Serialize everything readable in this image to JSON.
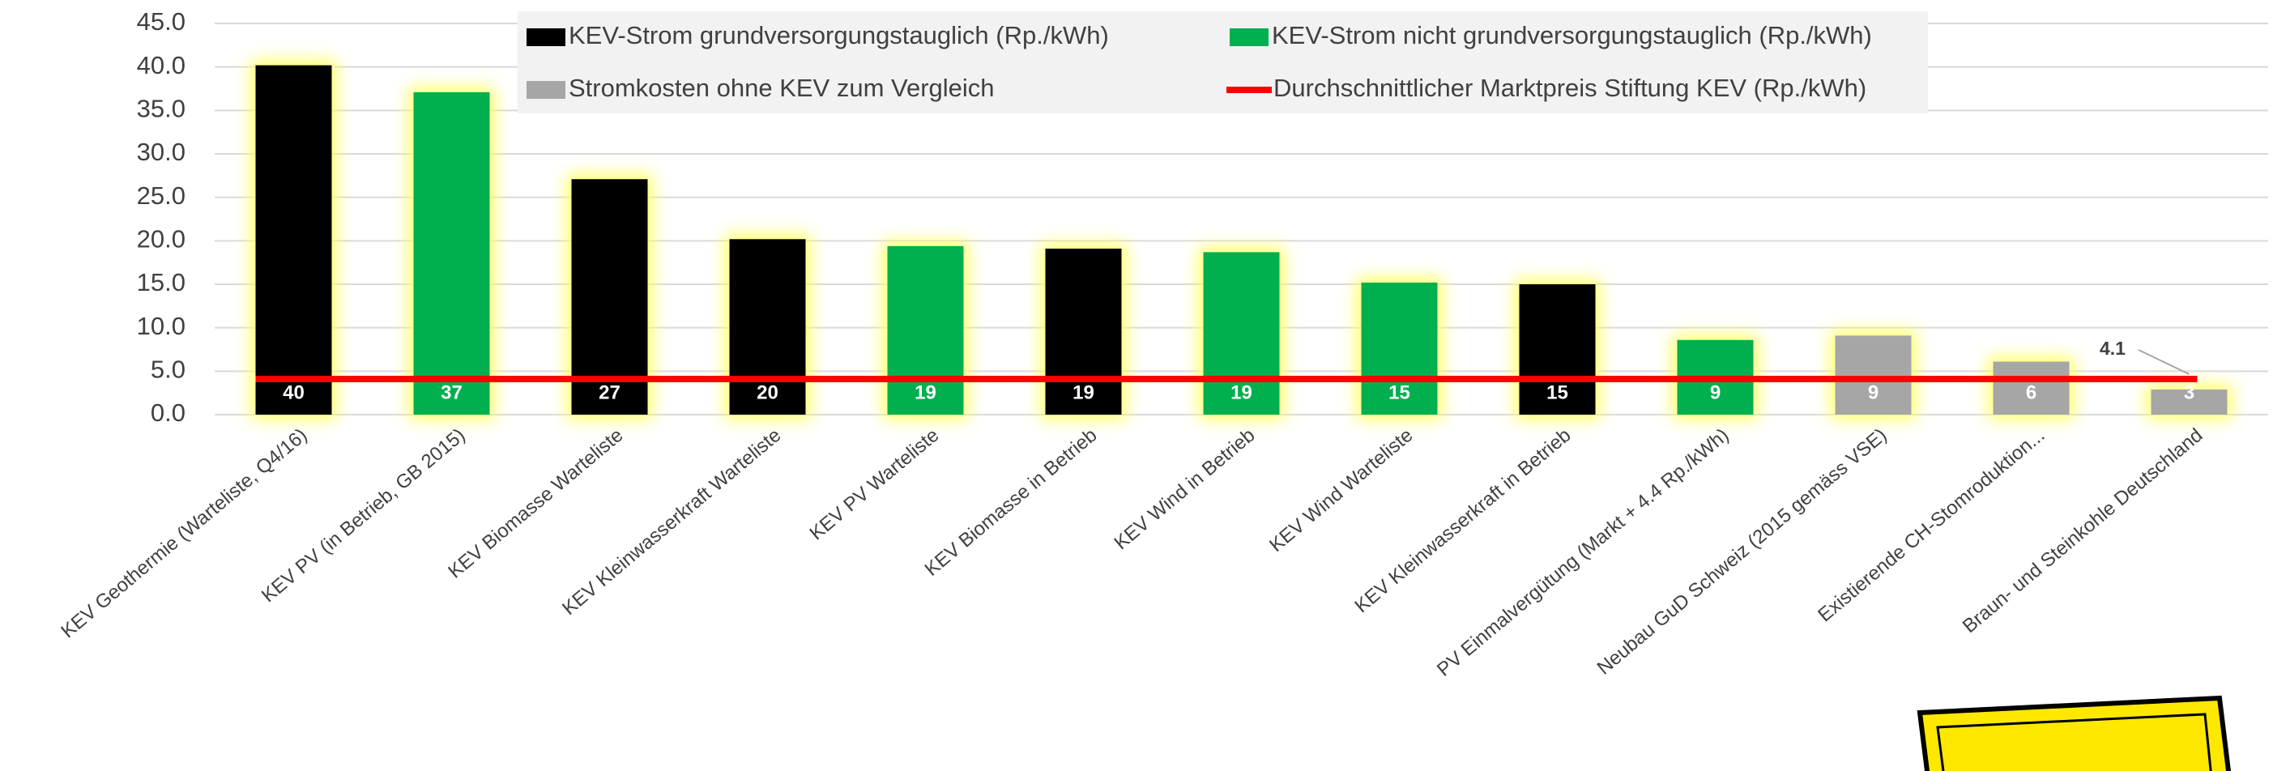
{
  "chart_data": {
    "type": "bar",
    "categories": [
      "KEV Geothermie (Warteliste, Q4/16)",
      "KEV PV (in Betrieb, GB 2015)",
      "KEV Biomasse Warteliste",
      "KEV Kleinwasserkraft Warteliste",
      "KEV PV Warteliste",
      "KEV Biomasse in Betrieb",
      "KEV Wind in Betrieb",
      "KEV Wind Warteliste",
      "KEV Kleinwasserkraft in Betrieb",
      "PV Einmalvergütung (Markt + 4.4 Rp./kWh)",
      "Neubau GuD Schweiz (2015 gemäss VSE)",
      "Existierende CH-Stomroduktion...",
      "Braun- und Steinkohle Deutschland"
    ],
    "values": [
      40.2,
      37.1,
      27.1,
      20.2,
      19.4,
      19.1,
      18.7,
      15.2,
      15.0,
      8.6,
      9.1,
      6.1,
      2.9
    ],
    "value_labels": [
      "40",
      "37",
      "27",
      "20",
      "19",
      "19",
      "19",
      "15",
      "15",
      "9",
      "9",
      "6",
      "3"
    ],
    "colors": [
      "#000000",
      "#00b050",
      "#000000",
      "#000000",
      "#00b050",
      "#000000",
      "#00b050",
      "#00b050",
      "#000000",
      "#00b050",
      "#a6a6a6",
      "#a6a6a6",
      "#a6a6a6"
    ],
    "legend": [
      {
        "name": "KEV-Strom grundversorgungstauglich (Rp./kWh)",
        "color": "#000000"
      },
      {
        "name": "KEV-Strom nicht grundversorgungstauglich (Rp./kWh)",
        "color": "#00b050"
      },
      {
        "name": "Stromkosten ohne KEV zum Vergleich",
        "color": "#a6a6a6"
      }
    ],
    "reference_line": {
      "name": "Durchschnittlicher Marktpreis Stiftung KEV (Rp./kWh)",
      "value": 4.1,
      "color": "#ff0000"
    },
    "ylim": [
      0,
      45
    ],
    "yticks": [
      {
        "value": 0,
        "label": "0.0"
      },
      {
        "value": 5,
        "label": "5.0"
      },
      {
        "value": 10,
        "label": "10.0"
      },
      {
        "value": 15,
        "label": "15.0"
      },
      {
        "value": 20,
        "label": "20.0"
      },
      {
        "value": 25,
        "label": "25.0"
      },
      {
        "value": 30,
        "label": "30.0"
      },
      {
        "value": 35,
        "label": "35.0"
      },
      {
        "value": 40,
        "label": "40.0"
      },
      {
        "value": 45,
        "label": "45.0"
      }
    ],
    "grid": true
  }
}
